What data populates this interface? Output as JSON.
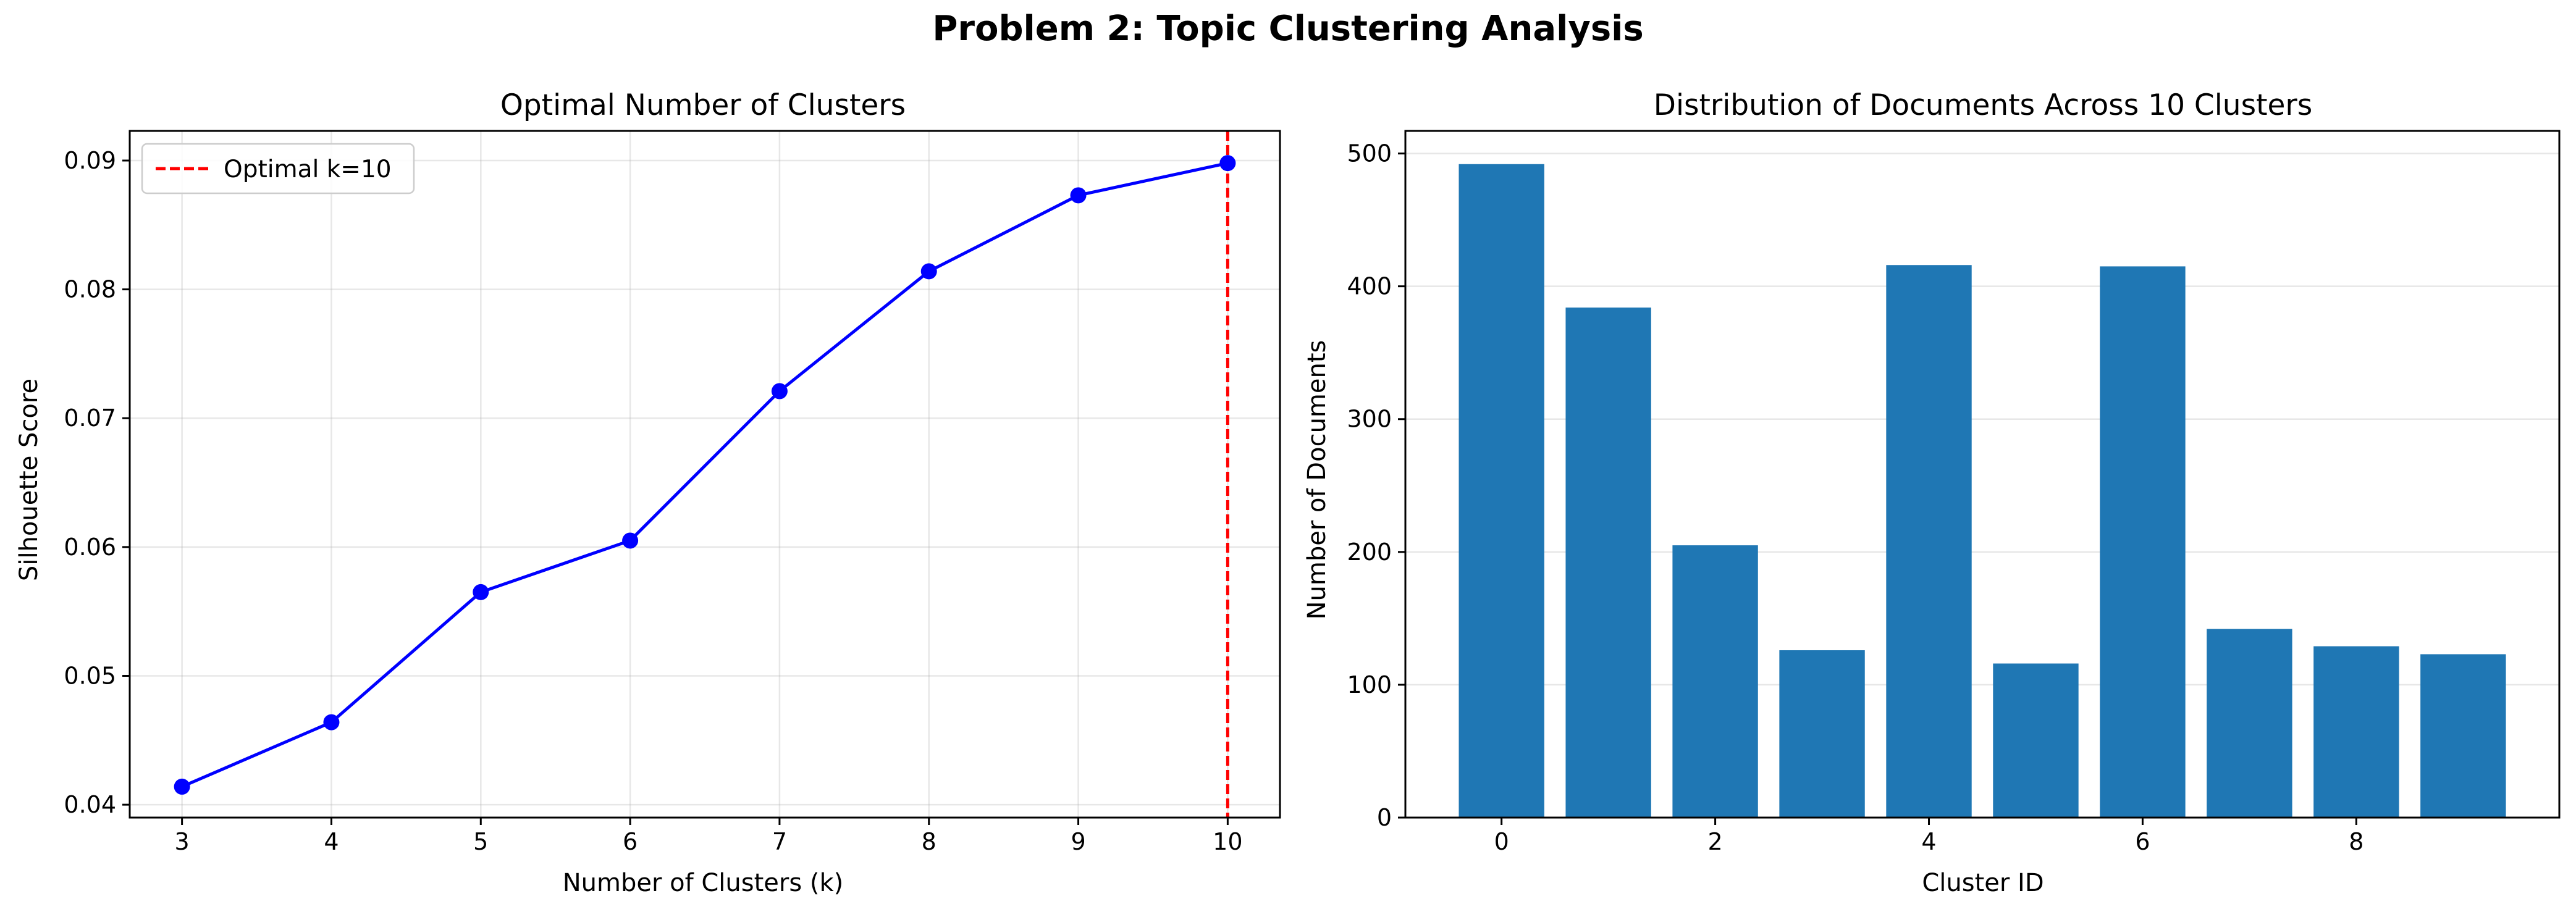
{
  "figure": {
    "title": "Problem 2: Topic Clustering Analysis"
  },
  "chart_data": [
    {
      "type": "line",
      "title": "Optimal Number of Clusters",
      "xlabel": "Number of Clusters (k)",
      "ylabel": "Silhouette Score",
      "x": [
        3,
        4,
        5,
        6,
        7,
        8,
        9,
        10
      ],
      "series": [
        {
          "values": [
            0.0414,
            0.0464,
            0.0565,
            0.0605,
            0.0721,
            0.0814,
            0.0873,
            0.0898
          ],
          "color": "#0000ff",
          "marker": "circle"
        }
      ],
      "reference_line": {
        "orientation": "vertical",
        "x": 10,
        "label": "Optimal k=10",
        "color": "#ff0000",
        "style": "dashed"
      },
      "xlim": [
        2.65,
        10.35
      ],
      "ylim": [
        0.039,
        0.0923
      ],
      "xticks": [
        3,
        4,
        5,
        6,
        7,
        8,
        9,
        10
      ],
      "yticks": [
        0.04,
        0.05,
        0.06,
        0.07,
        0.08,
        0.09
      ],
      "ytick_labels": [
        "0.04",
        "0.05",
        "0.06",
        "0.07",
        "0.08",
        "0.09"
      ],
      "grid": true,
      "legend_position": "top-left"
    },
    {
      "type": "bar",
      "title": "Distribution of Documents Across 10 Clusters",
      "xlabel": "Cluster ID",
      "ylabel": "Number of Documents",
      "categories": [
        0,
        1,
        2,
        3,
        4,
        5,
        6,
        7,
        8,
        9
      ],
      "values": [
        492,
        384,
        205,
        126,
        416,
        116,
        415,
        142,
        129,
        123
      ],
      "color": "#1f77b4",
      "xlim": [
        -0.9,
        9.9
      ],
      "ylim": [
        0,
        517
      ],
      "xticks": [
        0,
        2,
        4,
        6,
        8
      ],
      "yticks": [
        0,
        100,
        200,
        300,
        400,
        500
      ],
      "grid": true,
      "grid_axis": "y"
    }
  ]
}
